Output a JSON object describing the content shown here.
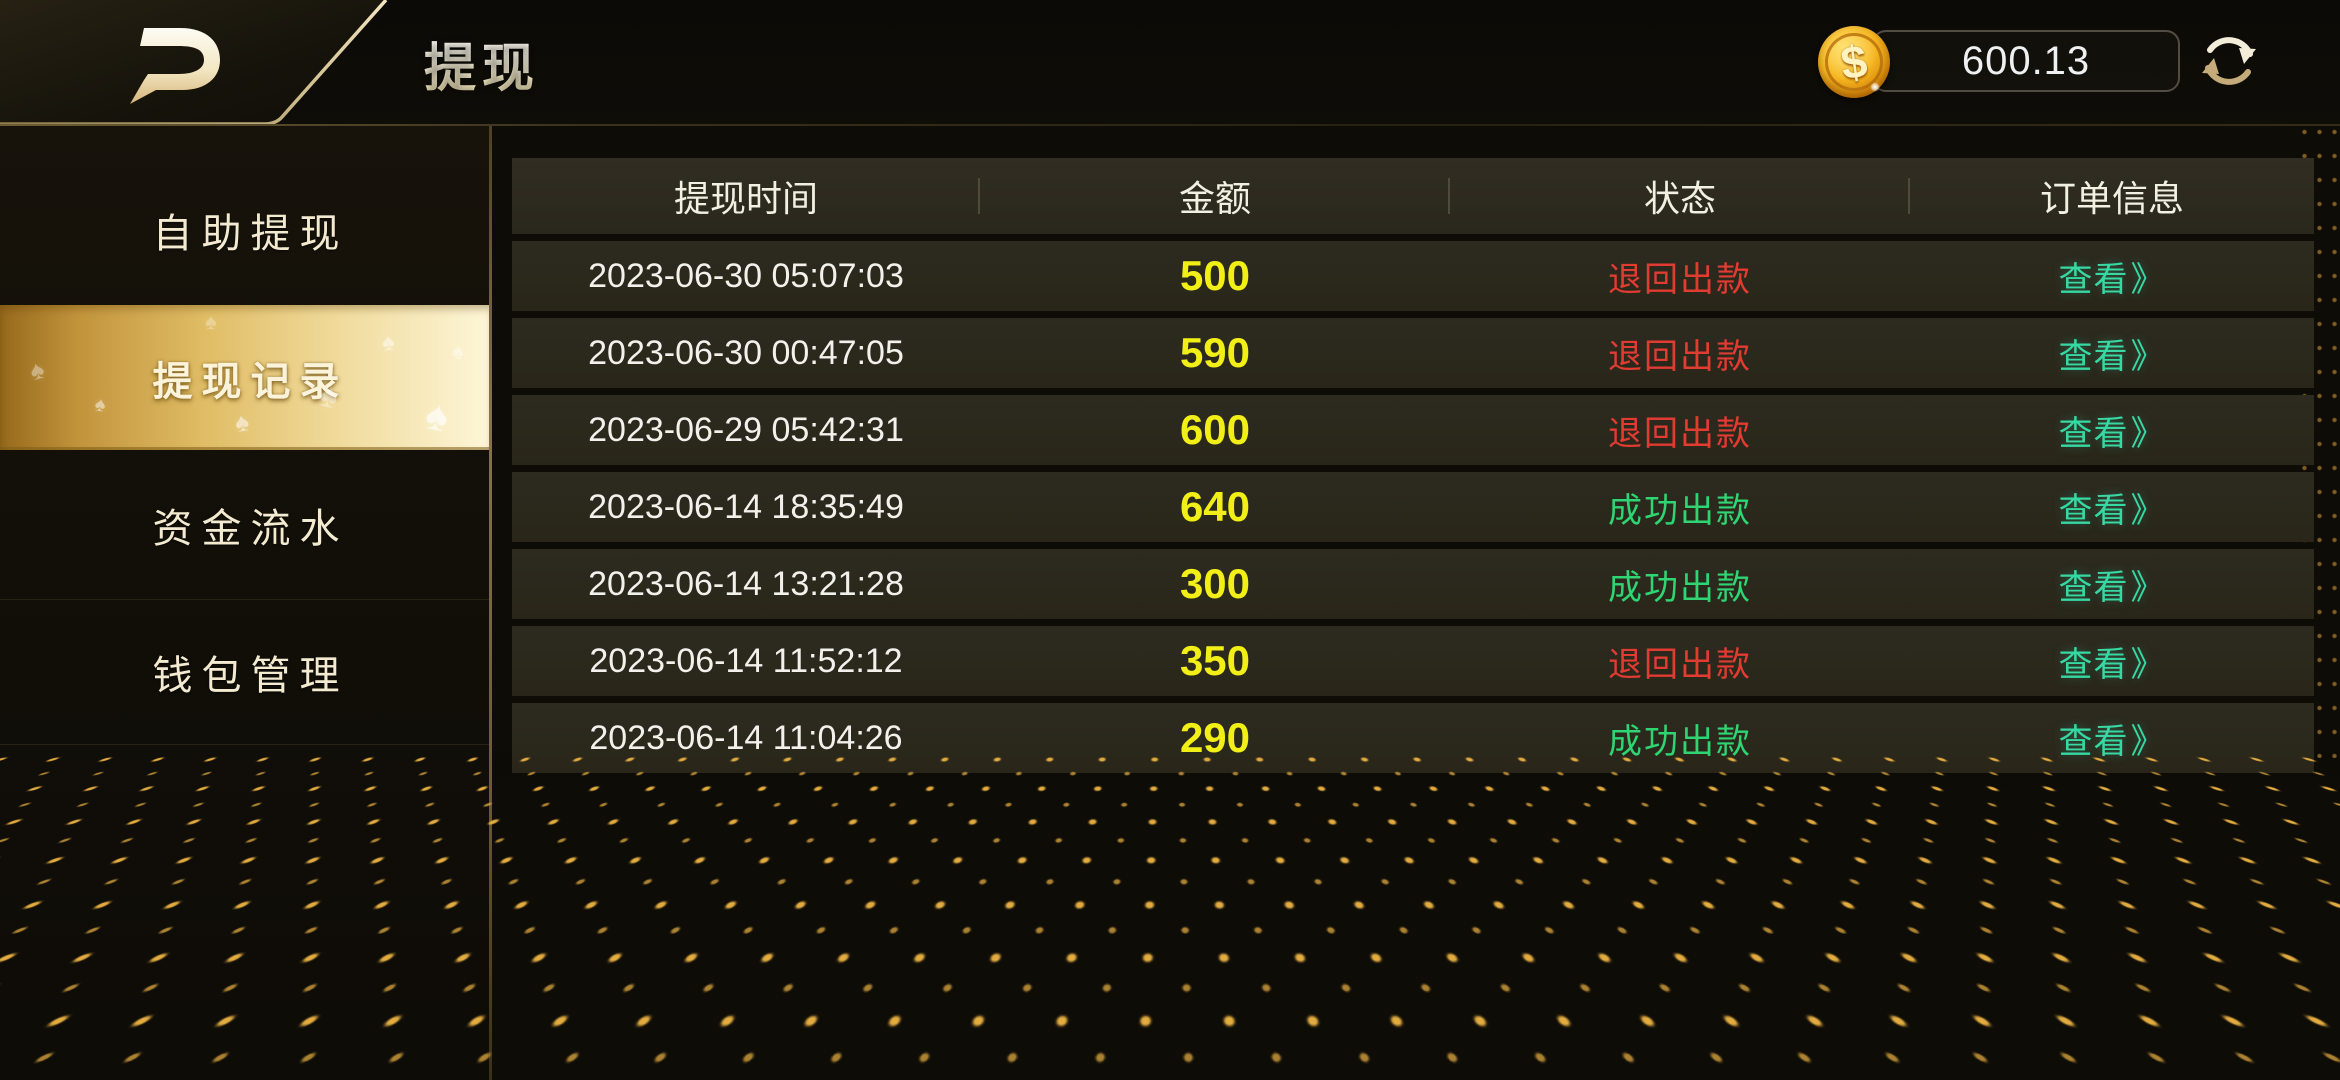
{
  "topbar": {
    "title": "提现",
    "balance": {
      "value": "600.13",
      "coin_symbol": "$"
    }
  },
  "sidebar": {
    "items": [
      {
        "label": "自助提现",
        "active": false
      },
      {
        "label": "提现记录",
        "active": true
      },
      {
        "label": "资金流水",
        "active": false
      },
      {
        "label": "钱包管理",
        "active": false
      }
    ]
  },
  "table": {
    "columns": [
      "提现时间",
      "金额",
      "状态",
      "订单信息"
    ],
    "action_label": "查看",
    "action_arrow": "》",
    "rows": [
      {
        "time": "2023-06-30 05:07:03",
        "amount": "500",
        "status": "退回出款",
        "status_type": "returned"
      },
      {
        "time": "2023-06-30 00:47:05",
        "amount": "590",
        "status": "退回出款",
        "status_type": "returned"
      },
      {
        "time": "2023-06-29 05:42:31",
        "amount": "600",
        "status": "退回出款",
        "status_type": "returned"
      },
      {
        "time": "2023-06-14 18:35:49",
        "amount": "640",
        "status": "成功出款",
        "status_type": "success"
      },
      {
        "time": "2023-06-14 13:21:28",
        "amount": "300",
        "status": "成功出款",
        "status_type": "success"
      },
      {
        "time": "2023-06-14 11:52:12",
        "amount": "350",
        "status": "退回出款",
        "status_type": "returned"
      },
      {
        "time": "2023-06-14 11:04:26",
        "amount": "290",
        "status": "成功出款",
        "status_type": "success"
      }
    ]
  },
  "colors": {
    "amount": "#f2ef16",
    "status_returned": "#e23b31",
    "status_success": "#2fd573",
    "action_link": "#38d8a4",
    "accent_gold": "#e6c06a"
  },
  "decor": {
    "spade_glyph": "♠"
  }
}
